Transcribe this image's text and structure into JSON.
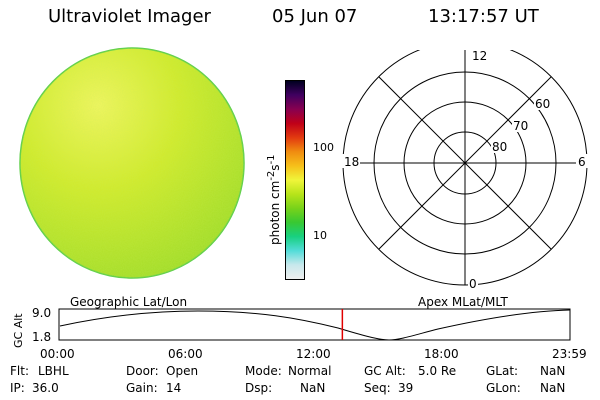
{
  "header": {
    "instrument": "Ultraviolet Imager",
    "date": "05 Jun 07",
    "time": "13:17:57 UT"
  },
  "colorbar": {
    "unit_label_html": "photon cm<sup>-2</sup>s<sup>-1</sup>",
    "ticks": [
      "100",
      "10"
    ],
    "colors": [
      "#eeeeee",
      "#c8e8ec",
      "#52dcd8",
      "#18d080",
      "#38c832",
      "#78d21a",
      "#b8e41a",
      "#f0f53a",
      "#f6c01a",
      "#f08c10",
      "#e23a10",
      "#c00018",
      "#880050",
      "#400060",
      "#000020"
    ]
  },
  "polar": {
    "mlt_labels": [
      "12",
      "18",
      "6",
      "0"
    ],
    "lat_labels": [
      "60",
      "70",
      "80"
    ]
  },
  "timeline": {
    "left_caption": "Geographic Lat/Lon",
    "right_caption": "Apex  MLat/MLT",
    "y_axis_label": "GC Alt",
    "y_max": "9.0",
    "y_min": "1.8",
    "x_ticks": [
      "00:00",
      "06:00",
      "12:00",
      "18:00",
      "23:59"
    ],
    "current_marker_time": "13:17:57"
  },
  "info": {
    "flt_label": "Flt:",
    "flt_value": "LBHL",
    "ip_label": "IP:",
    "ip_value": "36.0",
    "door_label": "Door:",
    "door_value": "Open",
    "gain_label": "Gain:",
    "gain_value": "14",
    "mode_label": "Mode:",
    "mode_value": "Normal",
    "dsp_label": "Dsp:",
    "dsp_value": "NaN",
    "gcalt_label": "GC Alt:",
    "gcalt_value": "5.0 Re",
    "seq_label": "Seq:",
    "seq_value": "39",
    "glat_label": "GLat:",
    "glat_value": "NaN",
    "glon_label": "GLon:",
    "glon_value": "NaN"
  }
}
